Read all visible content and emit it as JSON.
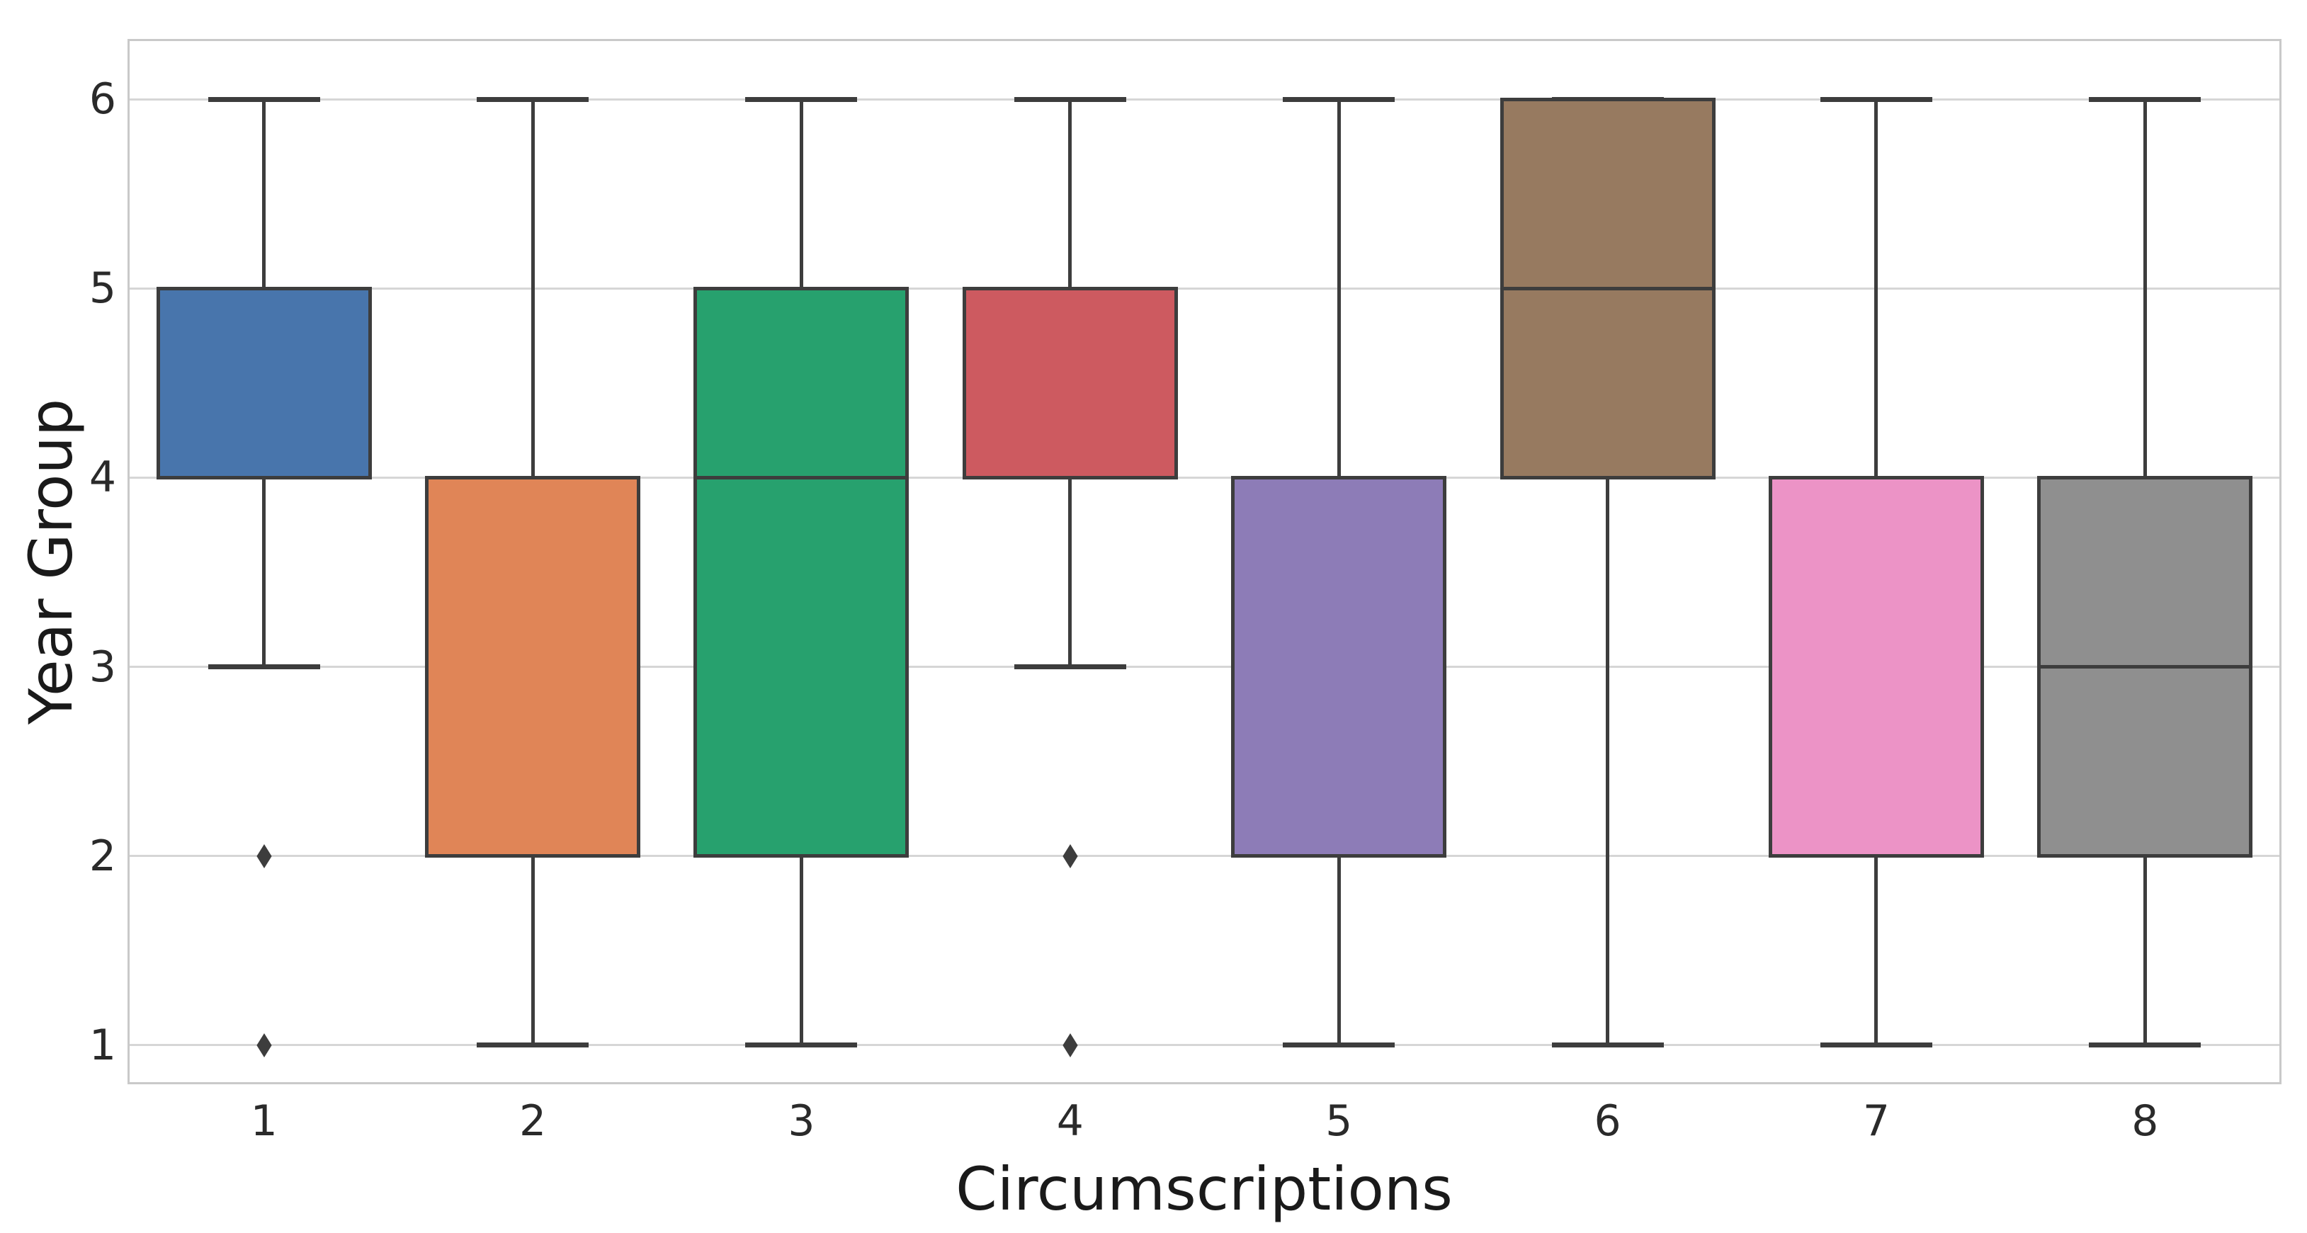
{
  "chart_data": {
    "type": "box",
    "title": "",
    "xlabel": "Circumscriptions",
    "ylabel": "Year Group",
    "categories": [
      "1",
      "2",
      "3",
      "4",
      "5",
      "6",
      "7",
      "8"
    ],
    "y_ticks": [
      1,
      2,
      3,
      4,
      5,
      6
    ],
    "ylim": [
      0.805,
      6.307
    ],
    "grid": "horizontal",
    "legend": "none",
    "colors": {
      "background": "#ffffff",
      "edge": "#3d3d3d",
      "gridline": "#d6d6d6",
      "spine": "#c9c9c9",
      "tick_text": "#2a2a2a",
      "label_text": "#1a1a1a"
    },
    "boxes": [
      {
        "category": "1",
        "color": "#4875ac",
        "q1": 4,
        "q3": 5,
        "median": 5,
        "median_hidden": true,
        "whisker_low": 3,
        "whisker_high": 6,
        "outliers": [
          2,
          1
        ]
      },
      {
        "category": "2",
        "color": "#e08557",
        "q1": 2,
        "q3": 4,
        "median": 4,
        "median_hidden": true,
        "whisker_low": 1,
        "whisker_high": 6,
        "outliers": []
      },
      {
        "category": "3",
        "color": "#27a16e",
        "q1": 2,
        "q3": 5,
        "median": 4,
        "median_hidden": false,
        "whisker_low": 1,
        "whisker_high": 6,
        "outliers": []
      },
      {
        "category": "4",
        "color": "#cd5a60",
        "q1": 4,
        "q3": 5,
        "median": 4,
        "median_hidden": true,
        "whisker_low": 3,
        "whisker_high": 6,
        "outliers": [
          2,
          1
        ]
      },
      {
        "category": "5",
        "color": "#8d7cb7",
        "q1": 2,
        "q3": 4,
        "median": 4,
        "median_hidden": true,
        "whisker_low": 1,
        "whisker_high": 6,
        "outliers": []
      },
      {
        "category": "6",
        "color": "#977a60",
        "q1": 4,
        "q3": 6,
        "median": 5,
        "median_hidden": false,
        "whisker_low": 1,
        "whisker_high": 6,
        "outliers": []
      },
      {
        "category": "7",
        "color": "#ec93c6",
        "q1": 2,
        "q3": 4,
        "median": 4,
        "median_hidden": true,
        "whisker_low": 1,
        "whisker_high": 6,
        "outliers": []
      },
      {
        "category": "8",
        "color": "#8f8f8f",
        "q1": 2,
        "q3": 4,
        "median": 3,
        "median_hidden": false,
        "whisker_low": 1,
        "whisker_high": 6,
        "outliers": []
      }
    ]
  }
}
